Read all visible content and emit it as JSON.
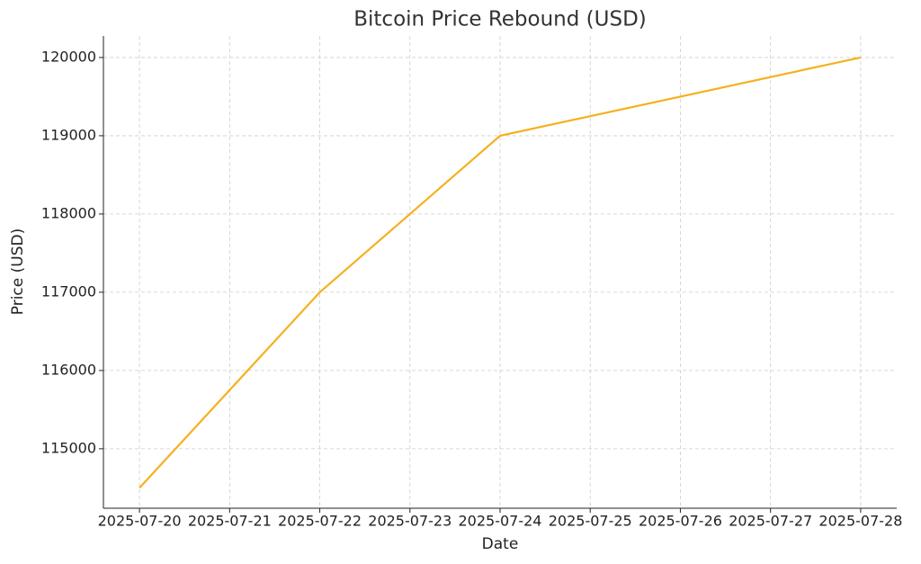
{
  "chart_data": {
    "type": "line",
    "title": "Bitcoin Price Rebound (USD)",
    "xlabel": "Date",
    "ylabel": "Price (USD)",
    "categories": [
      "2025-07-20",
      "2025-07-21",
      "2025-07-22",
      "2025-07-23",
      "2025-07-24",
      "2025-07-25",
      "2025-07-26",
      "2025-07-27",
      "2025-07-28"
    ],
    "series": [
      {
        "name": "Bitcoin",
        "color": "#f6b01e",
        "values": [
          114500,
          115750,
          117000,
          118000,
          119000,
          119250,
          119500,
          119750,
          120000
        ]
      }
    ],
    "ylim": [
      114240,
      120275
    ],
    "yticks": [
      115000,
      116000,
      117000,
      118000,
      119000,
      120000
    ],
    "grid": true
  }
}
